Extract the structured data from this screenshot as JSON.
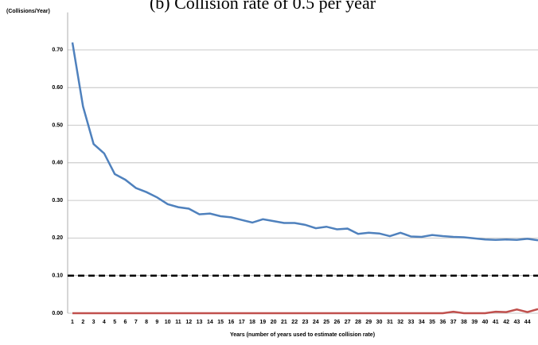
{
  "chart_data": {
    "type": "line",
    "title": "(b) Collision rate of 0.5 per year",
    "y_label": "(Collisions/Year)",
    "x_label": "Years (number of years used to estimate collision rate)",
    "categories": [
      1,
      2,
      3,
      4,
      5,
      6,
      7,
      8,
      9,
      10,
      11,
      12,
      13,
      14,
      15,
      16,
      17,
      18,
      19,
      20,
      21,
      22,
      23,
      24,
      25,
      26,
      27,
      28,
      29,
      30,
      31,
      32,
      33,
      34,
      35,
      36,
      37,
      38,
      39,
      40,
      41,
      42,
      43,
      44,
      null
    ],
    "series": [
      {
        "color": "#4f81bd",
        "values": [
          0.72,
          0.55,
          0.45,
          0.425,
          0.37,
          0.355,
          0.333,
          0.322,
          0.308,
          0.29,
          0.282,
          0.278,
          0.263,
          0.265,
          0.258,
          0.255,
          0.248,
          0.241,
          0.25,
          0.245,
          0.24,
          0.24,
          0.235,
          0.226,
          0.23,
          0.223,
          0.225,
          0.211,
          0.214,
          0.212,
          0.205,
          0.214,
          0.204,
          0.203,
          0.208,
          0.205,
          0.203,
          0.202,
          0.199,
          0.196,
          0.195,
          0.196,
          0.195,
          0.198,
          0.194
        ]
      },
      {
        "color": "#c0504d",
        "values": [
          0,
          0,
          0,
          0,
          0,
          0,
          0,
          0,
          0,
          0,
          0,
          0,
          0,
          0,
          0,
          0,
          0,
          0,
          0,
          0,
          0,
          0,
          0,
          0,
          0,
          0,
          0,
          0,
          0,
          0,
          0,
          0,
          0,
          0,
          0,
          0,
          0.004,
          0,
          0,
          0,
          0.004,
          0.003,
          0.01,
          0.003,
          0.011
        ]
      }
    ],
    "reference_line": {
      "value": 0.1,
      "color": "#000000"
    },
    "ylim": [
      0,
      0.8
    ],
    "yticks": [
      {
        "value": 0,
        "label": "0.00"
      },
      {
        "value": 0.1,
        "label": "0.10"
      },
      {
        "value": 0.2,
        "label": "0.20"
      },
      {
        "value": 0.3,
        "label": "0.30"
      },
      {
        "value": 0.4,
        "label": "0.40"
      },
      {
        "value": 0.5,
        "label": "0.50"
      },
      {
        "value": 0.6,
        "label": "0.60"
      },
      {
        "value": 0.7,
        "label": "0.70"
      }
    ],
    "grid": true
  }
}
